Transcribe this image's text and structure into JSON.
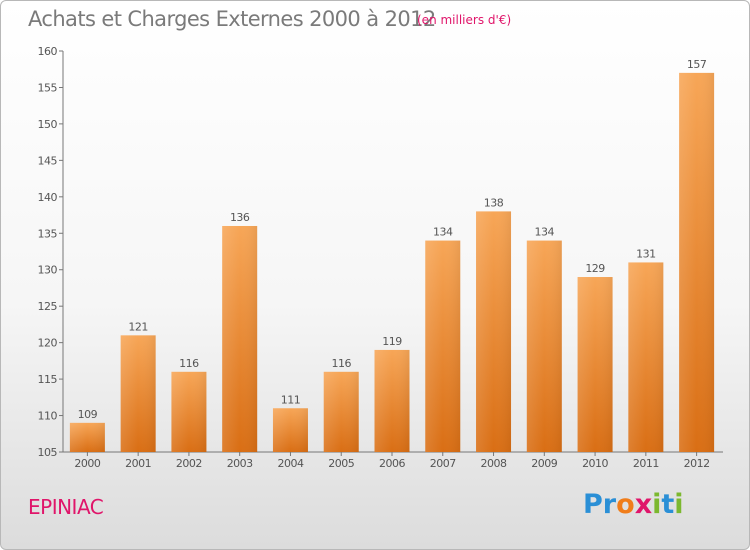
{
  "title": "Achats et Charges Externes 2000 à 2012",
  "subtitle": "(en milliers d'€)",
  "commune": "EPINIAC",
  "logo": {
    "text": "Proxiti",
    "letters": [
      "P",
      "r",
      "o",
      "x",
      "i",
      "t",
      "i"
    ],
    "colors": [
      "#2a8fd6",
      "#2a8fd6",
      "#f07d1a",
      "#e0156a",
      "#7cb82f",
      "#2a8fd6",
      "#7cb82f"
    ]
  },
  "chart_data": {
    "type": "bar",
    "title": "Achats et Charges Externes 2000 à 2012",
    "subtitle": "(en milliers d'€)",
    "categories": [
      "2000",
      "2001",
      "2002",
      "2003",
      "2004",
      "2005",
      "2006",
      "2007",
      "2008",
      "2009",
      "2010",
      "2011",
      "2012"
    ],
    "values": [
      109,
      121,
      116,
      136,
      111,
      116,
      119,
      134,
      138,
      134,
      129,
      131,
      157
    ],
    "ylim": [
      105,
      160
    ],
    "yticks": [
      105,
      110,
      115,
      120,
      125,
      130,
      135,
      140,
      145,
      150,
      155,
      160
    ],
    "grid": false,
    "bar_color": "#f0892a"
  }
}
